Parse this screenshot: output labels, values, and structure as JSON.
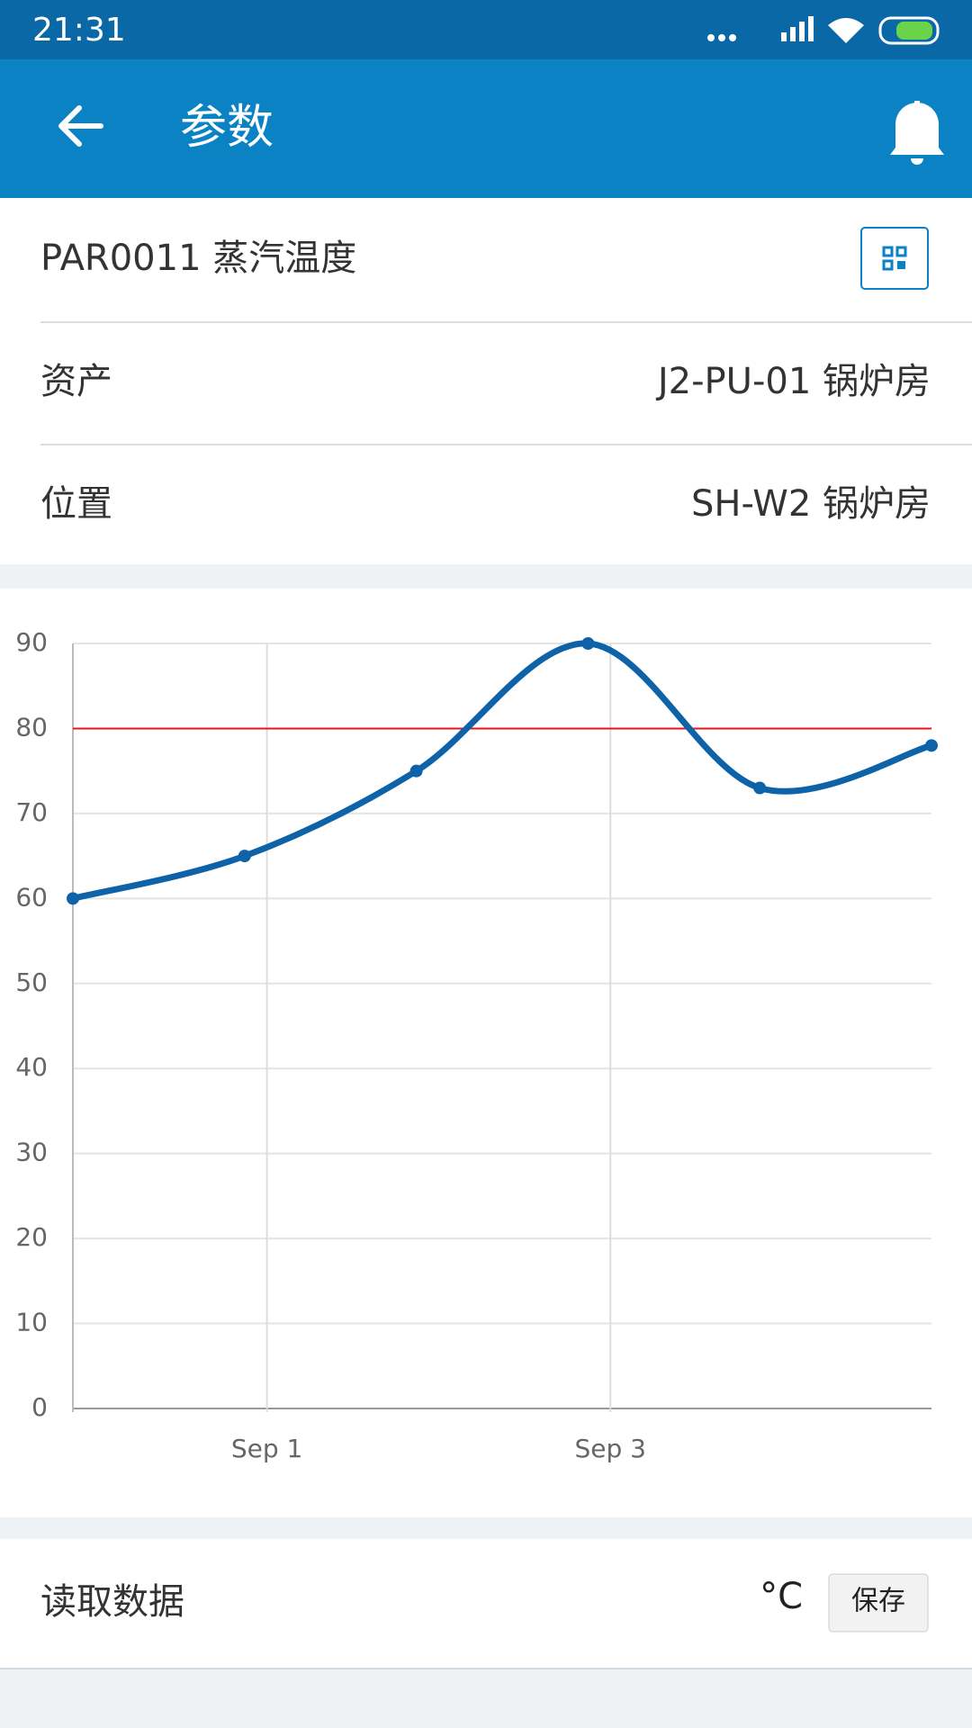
{
  "status_bar": {
    "time": "21:31"
  },
  "app_bar": {
    "title": "参数"
  },
  "parameter": {
    "code_name": "PAR0011 蒸汽温度"
  },
  "fields": [
    {
      "label": "资产",
      "value": "J2-PU-01 锅炉房"
    },
    {
      "label": "位置",
      "value": "SH-W2 锅炉房"
    }
  ],
  "chart_data": {
    "type": "line",
    "x": [
      -0.13,
      0.87,
      1.87,
      2.87,
      3.87,
      4.87
    ],
    "values": [
      60,
      65,
      75,
      90,
      73,
      78
    ],
    "color": "#0d62a8",
    "xlim": [
      -0.13,
      4.87
    ],
    "xticks": [
      {
        "value": 1,
        "label": "Sep 1"
      },
      {
        "value": 3,
        "label": "Sep 3"
      }
    ],
    "ylim": [
      0,
      90
    ],
    "yticks": [
      0,
      10,
      20,
      30,
      40,
      50,
      60,
      70,
      80,
      90
    ],
    "grid": true,
    "reference_line": {
      "value": 80,
      "color": "#e8141c"
    }
  },
  "reading": {
    "label": "读取数据",
    "unit": "°C",
    "button": "保存"
  }
}
